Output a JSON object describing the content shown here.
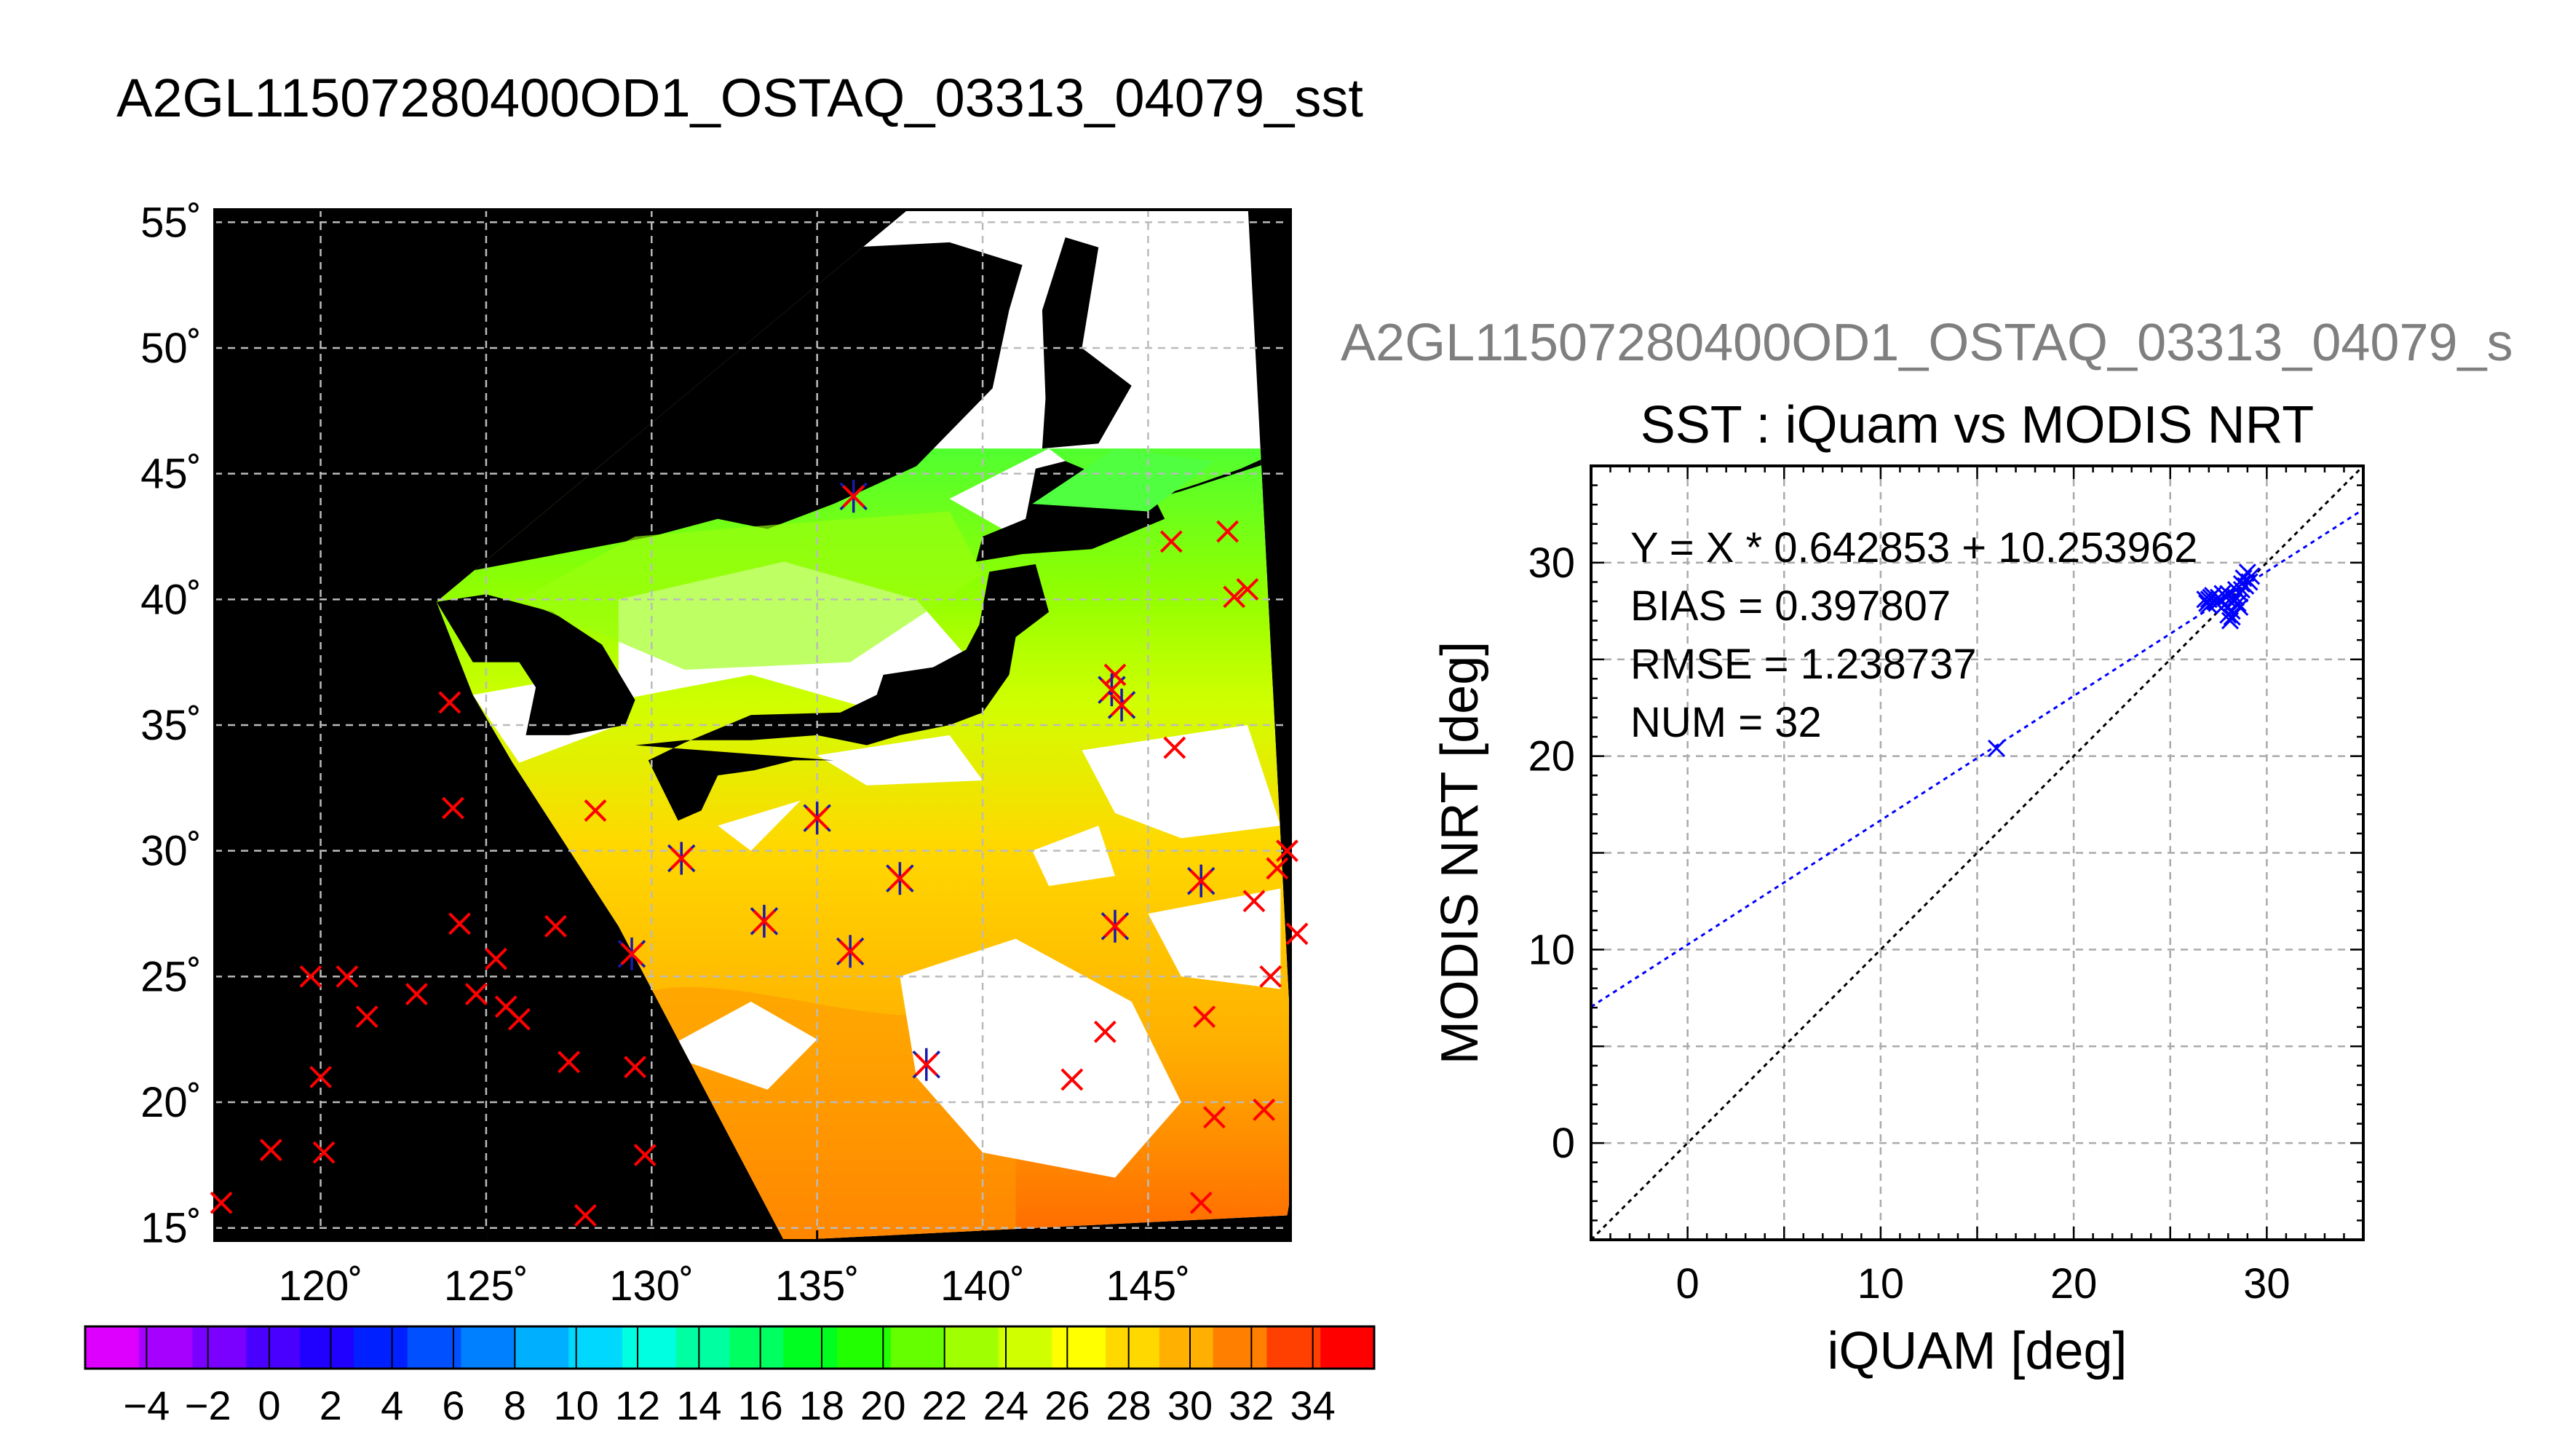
{
  "page": {
    "map_title": "A2GL11507280400OD1_OSTAQ_03313_04079_sst",
    "scatter_header": "A2GL11507280400OD1_OSTAQ_03313_04079_s"
  },
  "colors": {
    "land": "#000000",
    "no_data": "#ffffff",
    "sst_colormap": [
      "#dd00ff",
      "#a600ff",
      "#7a00ff",
      "#4a00ff",
      "#2000ff",
      "#0020ff",
      "#0050ff",
      "#0080ff",
      "#00b0ff",
      "#00d8ff",
      "#00ffe0",
      "#00ffa0",
      "#00ff60",
      "#00ff20",
      "#22ff00",
      "#66ff00",
      "#a0ff00",
      "#d0ff00",
      "#ffff00",
      "#ffd800",
      "#ffb000",
      "#ff8000",
      "#ff4000",
      "#ff0000"
    ],
    "iquam_marker": "#ff0000",
    "match_marker": "#1a1aaa",
    "fit_line": "#0000ff",
    "one_to_one": "#000000"
  },
  "chart_data": [
    {
      "type": "heatmap",
      "title": "A2GL11507280400OD1_OSTAQ_03313_04079_sst",
      "x_ticks": [
        "120˚",
        "125˚",
        "130˚",
        "135˚",
        "140˚",
        "145˚"
      ],
      "y_ticks": [
        "15˚",
        "20˚",
        "25˚",
        "30˚",
        "35˚",
        "40˚",
        "45˚",
        "50˚",
        "55˚"
      ],
      "xlim": [
        116.8,
        149.3
      ],
      "ylim": [
        14.5,
        55.5
      ],
      "grid": true,
      "colorbar": {
        "ticks": [
          "−4",
          "−2",
          "0",
          "2",
          "4",
          "6",
          "8",
          "10",
          "12",
          "14",
          "16",
          "18",
          "20",
          "22",
          "24",
          "26",
          "28",
          "30",
          "32",
          "34"
        ],
        "range": [
          -6,
          36
        ],
        "step": 2
      },
      "iquam_points": [
        [
          117,
          16
        ],
        [
          118.5,
          18.1
        ],
        [
          120,
          21
        ],
        [
          120.1,
          18
        ],
        [
          119.7,
          25
        ],
        [
          120.8,
          25
        ],
        [
          121.4,
          23.4
        ],
        [
          122.9,
          24.3
        ],
        [
          124.2,
          27.1
        ],
        [
          124.7,
          24.3
        ],
        [
          125.3,
          25.7
        ],
        [
          125.6,
          23.8
        ],
        [
          126,
          23.3
        ],
        [
          127.1,
          27
        ],
        [
          127.5,
          21.6
        ],
        [
          128,
          15.5
        ],
        [
          128.3,
          31.6
        ],
        [
          129.5,
          21.4
        ],
        [
          129.8,
          17.9
        ],
        [
          124,
          31.7
        ],
        [
          123.9,
          35.9
        ],
        [
          142.7,
          20.9
        ],
        [
          143.7,
          22.8
        ],
        [
          145.8,
          34.1
        ],
        [
          145.7,
          42.3
        ],
        [
          146.7,
          23.4
        ],
        [
          147,
          19.4
        ],
        [
          147.4,
          42.7
        ],
        [
          147.6,
          40.1
        ],
        [
          148,
          40.4
        ],
        [
          148.2,
          28
        ],
        [
          148.5,
          19.7
        ],
        [
          148.7,
          25
        ],
        [
          148.9,
          29.3
        ],
        [
          149.2,
          30
        ],
        [
          149.5,
          26.7
        ],
        [
          146.6,
          16
        ],
        [
          144,
          37
        ]
      ],
      "matchup_points": [
        [
          129.4,
          25.9
        ],
        [
          130.9,
          29.7
        ],
        [
          133.4,
          27.2
        ],
        [
          135,
          31.3
        ],
        [
          136,
          26
        ],
        [
          137.5,
          28.9
        ],
        [
          138.3,
          21.5
        ],
        [
          144,
          27
        ],
        [
          146.6,
          28.8
        ],
        [
          143.9,
          36.4
        ],
        [
          144.2,
          35.8
        ],
        [
          136.1,
          44.1
        ]
      ]
    },
    {
      "type": "scatter",
      "title": "SST : iQuam vs MODIS NRT",
      "xlabel": "iQUAM [deg]",
      "ylabel": "MODIS NRT [deg]",
      "xlim": [
        -5,
        35
      ],
      "ylim": [
        -5,
        35
      ],
      "x_ticks": [
        0,
        10,
        20,
        30
      ],
      "y_ticks": [
        0,
        10,
        20,
        30
      ],
      "grid": true,
      "annotations": [
        "Y = X * 0.642853 + 10.253962",
        "BIAS = 0.397807",
        "RMSE = 1.238737",
        "NUM = 32"
      ],
      "fit": {
        "slope": 0.642853,
        "intercept": 10.253962
      },
      "points": [
        [
          16.0,
          20.4
        ],
        [
          26.8,
          28.1
        ],
        [
          27.0,
          27.8
        ],
        [
          27.2,
          28.3
        ],
        [
          27.4,
          27.9
        ],
        [
          27.6,
          28.1
        ],
        [
          27.8,
          27.8
        ],
        [
          28.0,
          28.4
        ],
        [
          28.1,
          27.0
        ],
        [
          28.2,
          27.5
        ],
        [
          28.4,
          28.2
        ],
        [
          28.5,
          27.9
        ],
        [
          28.6,
          28.4
        ],
        [
          28.7,
          28.6
        ],
        [
          28.8,
          29.2
        ],
        [
          28.9,
          28.8
        ],
        [
          29.0,
          29.5
        ],
        [
          27.1,
          28.2
        ],
        [
          27.3,
          28.0
        ],
        [
          27.9,
          28.2
        ],
        [
          28.3,
          28.0
        ],
        [
          28.6,
          27.7
        ],
        [
          26.9,
          27.9
        ],
        [
          27.5,
          28.2
        ],
        [
          28.0,
          27.3
        ],
        [
          28.7,
          28.9
        ],
        [
          29.1,
          29.0
        ],
        [
          27.7,
          28.4
        ],
        [
          28.4,
          28.6
        ],
        [
          28.2,
          27.2
        ],
        [
          29.2,
          29.3
        ],
        [
          27.0,
          28.1
        ]
      ]
    }
  ]
}
